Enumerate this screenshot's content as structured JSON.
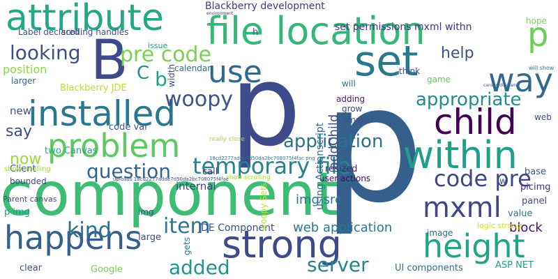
{
  "words": [
    {
      "text": "component",
      "color": "#3dbc74",
      "vertical": false
    },
    {
      "text": "p",
      "color": "#35608d",
      "vertical": false
    },
    {
      "text": "p",
      "color": "#3e4a89",
      "vertical": false
    },
    {
      "text": "B",
      "color": "#3e4a89",
      "vertical": false
    },
    {
      "text": "file location",
      "color": "#35b779",
      "vertical": false
    },
    {
      "text": "attribute",
      "color": "#22a884",
      "vertical": false
    },
    {
      "text": "set",
      "color": "#2a788e",
      "vertical": false
    },
    {
      "text": "installed",
      "color": "#2a788e",
      "vertical": false
    },
    {
      "text": "problem",
      "color": "#5ec962",
      "vertical": false
    },
    {
      "text": "strong",
      "color": "#3e4a89",
      "vertical": false
    },
    {
      "text": "happens",
      "color": "#355f8d",
      "vertical": false
    },
    {
      "text": "within",
      "color": "#1f9e89",
      "vertical": false
    },
    {
      "text": "child",
      "color": "#440154",
      "vertical": false
    },
    {
      "text": "height",
      "color": "#20a386",
      "vertical": false
    },
    {
      "text": "use",
      "color": "#31688e",
      "vertical": false
    },
    {
      "text": "way",
      "color": "#31688e",
      "vertical": false
    },
    {
      "text": "p",
      "color": "#6ece58",
      "vertical": false
    },
    {
      "text": "mxml",
      "color": "#404688",
      "vertical": false
    },
    {
      "text": "temporary file",
      "color": "#25838e",
      "vertical": false
    },
    {
      "text": "question",
      "color": "#32648e",
      "vertical": false
    },
    {
      "text": "looking",
      "color": "#3d4d8a",
      "vertical": false
    },
    {
      "text": "pre code",
      "color": "#7ad151",
      "vertical": false
    },
    {
      "text": "woopy",
      "color": "#3b528b",
      "vertical": false
    },
    {
      "text": "code pre",
      "color": "#414487",
      "vertical": false
    },
    {
      "text": "appropriate",
      "color": "#218e8d",
      "vertical": false
    },
    {
      "text": "application",
      "color": "#2c728e",
      "vertical": false
    },
    {
      "text": "kind",
      "color": "#2d708e",
      "vertical": false
    },
    {
      "text": "item",
      "color": "#2a778e",
      "vertical": false
    },
    {
      "text": "added",
      "color": "#1f958b",
      "vertical": false
    },
    {
      "text": "server",
      "color": "#26828e",
      "vertical": false
    },
    {
      "text": "say",
      "color": "#3e4a89",
      "vertical": false
    },
    {
      "text": "now",
      "color": "#9bd93c",
      "vertical": false
    },
    {
      "text": "help",
      "color": "#3b528b",
      "vertical": false
    },
    {
      "text": "C",
      "color": "#21918c",
      "vertical": false
    },
    {
      "text": "b",
      "color": "#1fa088",
      "vertical": false
    },
    {
      "text": "web application",
      "color": "#2a788e",
      "vertical": false
    },
    {
      "text": "block",
      "color": "#471063",
      "vertical": false
    },
    {
      "text": "JDE Component",
      "color": "#3c4f8a",
      "vertical": false
    },
    {
      "text": "img src",
      "color": "#29798e",
      "vertical": false
    },
    {
      "text": "Blackberry development",
      "color": "#453882",
      "vertical": false
    },
    {
      "text": "set permissions mxml withn",
      "color": "#46327e",
      "vertical": false
    },
    {
      "text": "position",
      "color": "#8bd646",
      "vertical": false
    },
    {
      "text": "Label declared",
      "color": "#3b528b",
      "vertical": false
    },
    {
      "text": "Blackberry JDE",
      "color": "#bddf26",
      "vertical": false
    },
    {
      "text": "internal",
      "color": "#424086",
      "vertical": false
    },
    {
      "text": "new",
      "color": "#3b528b",
      "vertical": false
    },
    {
      "text": "code var",
      "color": "#39568c",
      "vertical": false
    },
    {
      "text": "two Canvas",
      "color": "#22a884",
      "vertical": false
    },
    {
      "text": "Client",
      "color": "#3b528b",
      "vertical": false
    },
    {
      "text": "call",
      "color": "#46307e",
      "vertical": false
    },
    {
      "text": "resized",
      "color": "#482576",
      "vertical": false
    },
    {
      "text": "UI components",
      "color": "#2d718e",
      "vertical": false
    },
    {
      "text": "ASP NET",
      "color": "#1e9b8a",
      "vertical": false
    },
    {
      "text": "base",
      "color": "#3b528b",
      "vertical": false
    },
    {
      "text": "picimg",
      "color": "#46307e",
      "vertical": false
    },
    {
      "text": "panel",
      "color": "#3e4a89",
      "vertical": false
    },
    {
      "text": "value",
      "color": "#2a788e",
      "vertical": false
    },
    {
      "text": "logic strong",
      "color": "#d2e21b",
      "vertical": false
    },
    {
      "text": "image",
      "color": "#31688e",
      "vertical": false
    },
    {
      "text": "large",
      "color": "#3f4788",
      "vertical": false
    },
    {
      "text": "Google",
      "color": "#73d056",
      "vertical": false
    },
    {
      "text": "clear",
      "color": "#3b528b",
      "vertical": false
    },
    {
      "text": "larger",
      "color": "#32658e",
      "vertical": false
    },
    {
      "text": "calendar",
      "color": "#2e6f8e",
      "vertical": false
    },
    {
      "text": "think",
      "color": "#3e4c8a",
      "vertical": false
    },
    {
      "text": "game",
      "color": "#5ec962",
      "vertical": false
    },
    {
      "text": "will",
      "color": "#2c738e",
      "vertical": false
    },
    {
      "text": "adding",
      "color": "#481a6c",
      "vertical": false
    },
    {
      "text": "grow",
      "color": "#404588",
      "vertical": false
    },
    {
      "text": "smaller",
      "color": "#3b528b",
      "vertical": false
    },
    {
      "text": "user actions",
      "color": "#460b5e",
      "vertical": false
    },
    {
      "text": "bounded",
      "color": "#404688",
      "vertical": false
    },
    {
      "text": "show scolling",
      "color": "#9bd93c",
      "vertical": false
    },
    {
      "text": "really close",
      "color": "#a5db36",
      "vertical": false
    },
    {
      "text": "issue",
      "color": "#20a386",
      "vertical": false
    },
    {
      "text": "hope",
      "color": "#7ad151",
      "vertical": false
    },
    {
      "text": "h",
      "color": "#3b528b",
      "vertical": false
    },
    {
      "text": "web",
      "color": "#3e4989",
      "vertical": false
    },
    {
      "text": "scolling handles",
      "color": "#3e4a89",
      "vertical": false
    },
    {
      "text": "environment",
      "color": "#46327e",
      "vertical": false
    },
    {
      "text": "will show",
      "color": "#2a788e",
      "vertical": false
    },
    {
      "text": "canvas diagram",
      "color": "#404688",
      "vertical": false
    },
    {
      "text": "show scrolling",
      "color": "#a0da39",
      "vertical": false
    },
    {
      "text": "Parent canvas",
      "color": "#3e4a89",
      "vertical": false
    },
    {
      "text": "p img",
      "color": "#1f9a8a",
      "vertical": false
    },
    {
      "text": "width",
      "color": "#3e4a89",
      "vertical": true
    },
    {
      "text": "using Actionscript",
      "color": "#2f6c8e",
      "vertical": true
    },
    {
      "text": "addChild",
      "color": "#3e4a89",
      "vertical": true
    },
    {
      "text": "woopy Sets",
      "color": "#bddf26",
      "vertical": true
    },
    {
      "text": "gets",
      "color": "#2a788e",
      "vertical": true
    },
    {
      "text": "18cd2277adde7d50da2bc708075f4fac png",
      "color": "#2a788e",
      "vertical": false
    },
    {
      "text": "uploads 18cd2277adde7d50da2bc708075f4fac",
      "color": "#3e4a89",
      "vertical": false
    },
    {
      "text": "w",
      "color": "#3b528b",
      "vertical": false
    },
    {
      "text": "img",
      "color": "#3b528b",
      "vertical": false
    }
  ]
}
